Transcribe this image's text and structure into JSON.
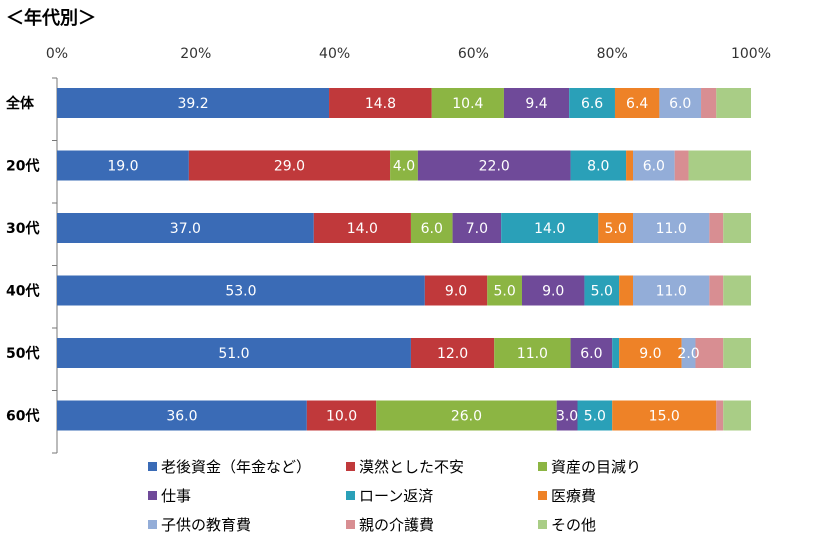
{
  "title": "＜年代別＞",
  "colors": {
    "series": [
      "#3a6bb6",
      "#c0393b",
      "#8cb543",
      "#6f4a99",
      "#2aa0b8",
      "#ee8227",
      "#93add8",
      "#d88e92",
      "#a9cd86"
    ],
    "axis": "#777777"
  },
  "chart_data": {
    "type": "bar",
    "orientation": "horizontal",
    "stacked": "percent",
    "title": "＜年代別＞",
    "xlim": [
      0,
      100
    ],
    "x_ticks": [
      "0%",
      "20%",
      "40%",
      "60%",
      "80%",
      "100%"
    ],
    "grid": false,
    "legend_position": "bottom",
    "categories": [
      "全体",
      "20代",
      "30代",
      "40代",
      "50代",
      "60代"
    ],
    "series": [
      {
        "name": "老後資金（年金など）",
        "values": [
          39.2,
          19.0,
          37.0,
          53.0,
          51.0,
          36.0
        ],
        "labels": [
          "39.2",
          "19.0",
          "37.0",
          "53.0",
          "51.0",
          "36.0"
        ]
      },
      {
        "name": "漠然とした不安",
        "values": [
          14.8,
          29.0,
          14.0,
          9.0,
          12.0,
          10.0
        ],
        "labels": [
          "14.8",
          "29.0",
          "14.0",
          "9.0",
          "12.0",
          "10.0"
        ]
      },
      {
        "name": "資産の目減り",
        "values": [
          10.4,
          4.0,
          6.0,
          5.0,
          11.0,
          26.0
        ],
        "labels": [
          "10.4",
          "4.0",
          "6.0",
          "5.0",
          "11.0",
          "26.0"
        ]
      },
      {
        "name": "仕事",
        "values": [
          9.4,
          22.0,
          7.0,
          9.0,
          6.0,
          3.0
        ],
        "labels": [
          "9.4",
          "22.0",
          "7.0",
          "9.0",
          "6.0",
          "3.0"
        ]
      },
      {
        "name": "ローン返済",
        "values": [
          6.6,
          8.0,
          14.0,
          5.0,
          1.0,
          5.0
        ],
        "labels": [
          "6.6",
          "8.0",
          "14.0",
          "5.0",
          "",
          "5.0"
        ]
      },
      {
        "name": "医療費",
        "values": [
          6.4,
          1.0,
          5.0,
          2.0,
          9.0,
          15.0
        ],
        "labels": [
          "6.4",
          "",
          "5.0",
          "",
          "9.0",
          "15.0"
        ]
      },
      {
        "name": "子供の教育費",
        "values": [
          6.0,
          6.0,
          11.0,
          11.0,
          2.0,
          0.0
        ],
        "labels": [
          "6.0",
          "6.0",
          "11.0",
          "11.0",
          "2.0",
          ""
        ]
      },
      {
        "name": "親の介護費",
        "values": [
          2.2,
          2.0,
          2.0,
          2.0,
          4.0,
          1.0
        ],
        "labels": [
          "",
          "",
          "",
          "",
          "",
          ""
        ]
      },
      {
        "name": "その他",
        "values": [
          5.0,
          9.0,
          4.0,
          4.0,
          4.0,
          4.0
        ],
        "labels": [
          "",
          "",
          "",
          "",
          "",
          ""
        ]
      }
    ]
  }
}
